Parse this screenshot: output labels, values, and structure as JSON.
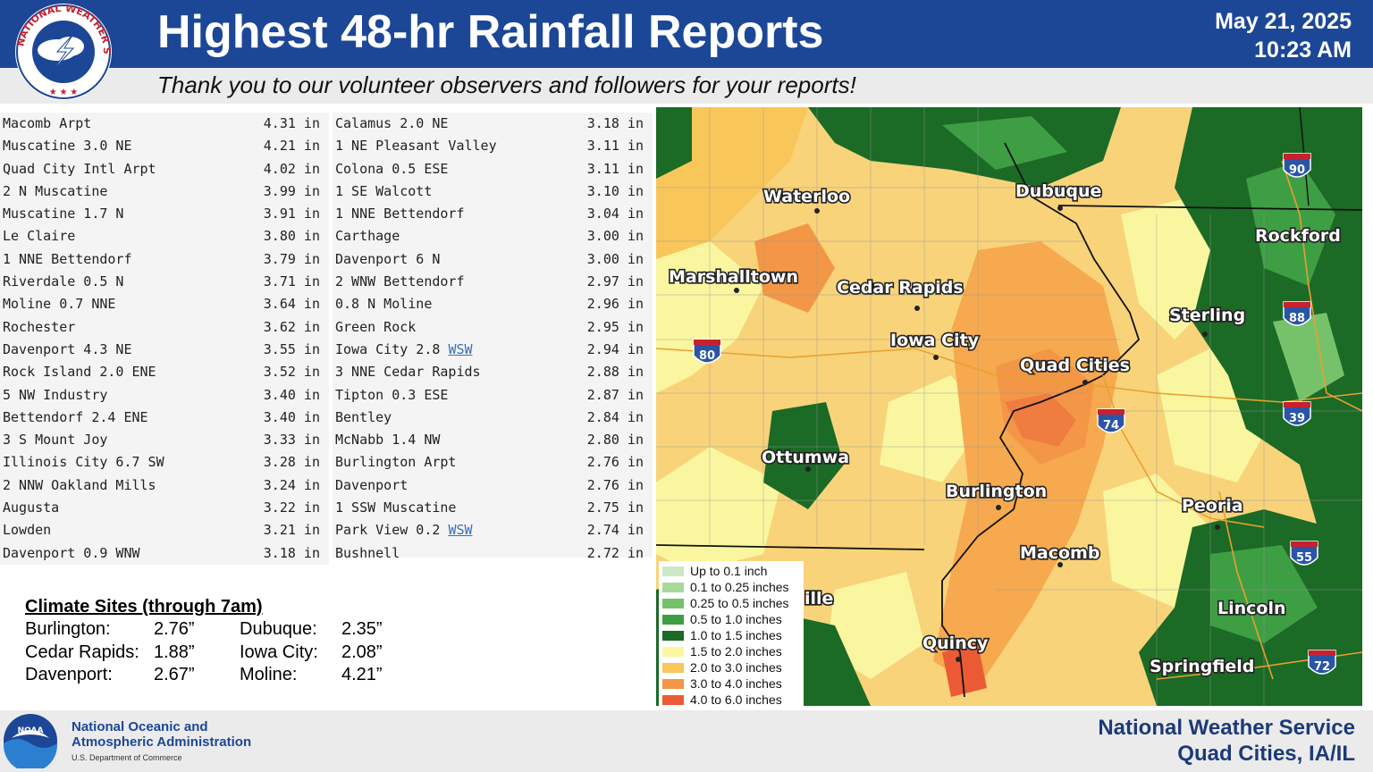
{
  "header": {
    "title": "Highest 48-hr Rainfall Reports",
    "date": "May 21, 2025",
    "time": "10:23 AM",
    "subtitle": "Thank you to our volunteer observers and followers for your reports!",
    "logo_text": "NATIONAL WEATHER SERVICE"
  },
  "reports_left": [
    {
      "name": "Macomb Arpt",
      "value": "4.31 in"
    },
    {
      "name": "Muscatine 3.0 NE",
      "value": "4.21 in"
    },
    {
      "name": "Quad City Intl Arpt",
      "value": "4.02 in"
    },
    {
      "name": "2 N Muscatine",
      "value": "3.99 in"
    },
    {
      "name": "Muscatine 1.7 N",
      "value": "3.91 in"
    },
    {
      "name": "Le Claire",
      "value": "3.80 in"
    },
    {
      "name": "1 NNE Bettendorf",
      "value": "3.79 in"
    },
    {
      "name": "Riverdale 0.5 N",
      "value": "3.71 in"
    },
    {
      "name": "Moline 0.7 NNE",
      "value": "3.64 in"
    },
    {
      "name": "Rochester",
      "value": "3.62 in"
    },
    {
      "name": "Davenport 4.3 NE",
      "value": "3.55 in"
    },
    {
      "name": "Rock Island 2.0 ENE",
      "value": "3.52 in"
    },
    {
      "name": "5 NW Industry",
      "value": "3.40 in"
    },
    {
      "name": "Bettendorf 2.4 ENE",
      "value": "3.40 in"
    },
    {
      "name": "3 S Mount Joy",
      "value": "3.33 in"
    },
    {
      "name": "Illinois City 6.7 SW",
      "value": "3.28 in"
    },
    {
      "name": "2 NNW Oakland Mills",
      "value": "3.24 in"
    },
    {
      "name": "Augusta",
      "value": "3.22 in"
    },
    {
      "name": "Lowden",
      "value": "3.21 in"
    },
    {
      "name": "Davenport 0.9 WNW",
      "value": "3.18 in"
    }
  ],
  "reports_right": [
    {
      "name": "Calamus 2.0 NE",
      "value": "3.18 in"
    },
    {
      "name": "1 NE Pleasant Valley",
      "value": "3.11 in"
    },
    {
      "name": "Colona 0.5 ESE",
      "value": "3.11 in"
    },
    {
      "name": "1 SE Walcott",
      "value": "3.10 in"
    },
    {
      "name": "1 NNE Bettendorf",
      "value": "3.04 in"
    },
    {
      "name": "Carthage",
      "value": "3.00 in"
    },
    {
      "name": "Davenport 6 N",
      "value": "3.00 in"
    },
    {
      "name": "2 WNW Bettendorf",
      "value": "2.97 in"
    },
    {
      "name": "0.8 N Moline",
      "value": "2.96 in"
    },
    {
      "name": "Green Rock",
      "value": "2.95 in"
    },
    {
      "name": "Iowa City 2.8",
      "link": "WSW",
      "value": "2.94 in"
    },
    {
      "name": "3 NNE Cedar Rapids",
      "value": "2.88 in"
    },
    {
      "name": "Tipton 0.3 ESE",
      "value": "2.87 in"
    },
    {
      "name": "Bentley",
      "value": "2.84 in"
    },
    {
      "name": "McNabb 1.4 NW",
      "value": "2.80 in"
    },
    {
      "name": "Burlington Arpt",
      "value": "2.76 in"
    },
    {
      "name": "Davenport",
      "value": "2.76 in"
    },
    {
      "name": "1 SSW Muscatine",
      "value": "2.75 in"
    },
    {
      "name": "Park View 0.2",
      "link": "WSW",
      "value": "2.74 in"
    },
    {
      "name": "Bushnell",
      "value": "2.72 in"
    }
  ],
  "climate": {
    "title": "Climate Sites (through 7am)",
    "rows": [
      {
        "name1": "Burlington:",
        "val1": "2.76”",
        "name2": "Dubuque:",
        "val2": "2.35”"
      },
      {
        "name1": "Cedar Rapids:",
        "val1": "1.88”",
        "name2": "Iowa City:",
        "val2": "2.08”"
      },
      {
        "name1": "Davenport:",
        "val1": "2.67”",
        "name2": "Moline:",
        "val2": "4.21”"
      }
    ]
  },
  "map": {
    "cities": {
      "waterloo": "Waterloo",
      "dubuque": "Dubuque",
      "rockford": "Rockford",
      "marshalltown": "Marshalltown",
      "cedar_rapids": "Cedar Rapids",
      "sterling": "Sterling",
      "iowa_city": "Iowa City",
      "quad_cities": "Quad Cities",
      "ottumwa": "Ottumwa",
      "burlington": "Burlington",
      "peoria": "Peoria",
      "macomb": "Macomb",
      "fairfield_partial": "ille",
      "lincoln": "Lincoln",
      "quincy": "Quincy",
      "springfield": "Springfield"
    },
    "interstates": {
      "i90": "90",
      "i88": "88",
      "i80": "80",
      "i74": "74",
      "i39": "39",
      "i55": "55",
      "i72": "72"
    }
  },
  "legend": [
    {
      "label": "Up to 0.1 inch",
      "color": "#cde8c4"
    },
    {
      "label": "0.1 to 0.25 inches",
      "color": "#a7d99a"
    },
    {
      "label": "0.25 to 0.5 inches",
      "color": "#76c26a"
    },
    {
      "label": "0.5 to 1.0 inches",
      "color": "#3e9e44"
    },
    {
      "label": "1.0 to 1.5 inches",
      "color": "#1b6a26"
    },
    {
      "label": "1.5 to 2.0 inches",
      "color": "#faf6a0"
    },
    {
      "label": "2.0 to 3.0 inches",
      "color": "#f9c65a"
    },
    {
      "label": "3.0 to 4.0 inches",
      "color": "#f39646"
    },
    {
      "label": "4.0 to 6.0 inches",
      "color": "#ec5a35"
    }
  ],
  "footer": {
    "noaa_line1": "National Oceanic and",
    "noaa_line2": "Atmospheric Administration",
    "noaa_dept": "U.S. Department of Commerce",
    "noaa_logo_text": "NOAA",
    "nws_line1": "National Weather Service",
    "nws_line2": "Quad Cities, IA/IL"
  }
}
